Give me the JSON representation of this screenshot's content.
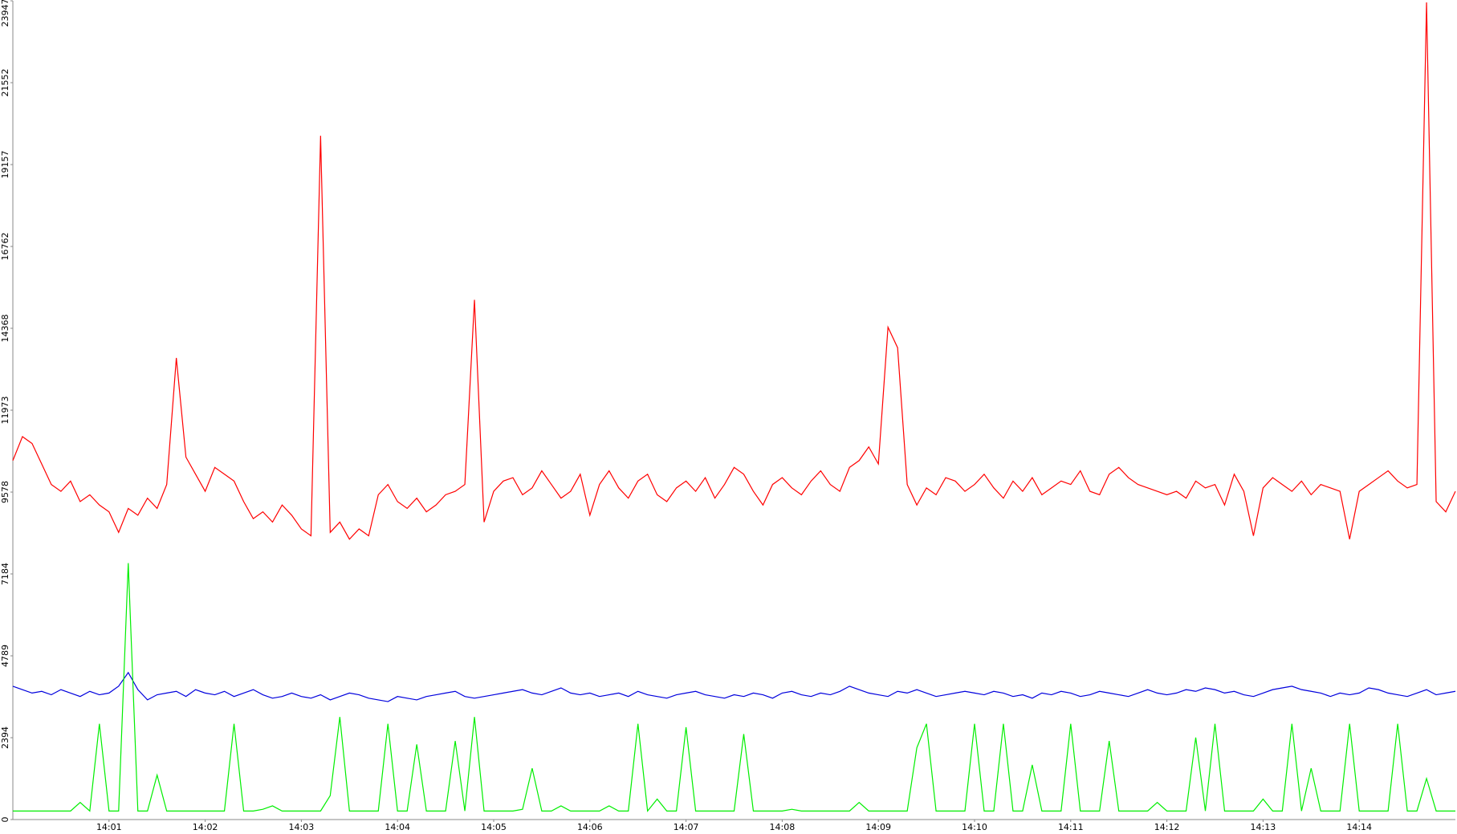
{
  "chart_data": {
    "type": "line",
    "x": [
      0,
      0.1,
      0.2,
      0.3,
      0.4,
      0.5,
      0.6,
      0.7,
      0.8,
      0.9,
      1,
      1.1,
      1.2,
      1.3,
      1.4,
      1.5,
      1.6,
      1.7,
      1.8,
      1.9,
      2,
      2.1,
      2.2,
      2.3,
      2.4,
      2.5,
      2.6,
      2.7,
      2.8,
      2.9,
      3,
      3.1,
      3.2,
      3.3,
      3.4,
      3.5,
      3.6,
      3.7,
      3.8,
      3.9,
      4,
      4.1,
      4.2,
      4.3,
      4.4,
      4.5,
      4.6,
      4.7,
      4.8,
      4.9,
      5,
      5.1,
      5.2,
      5.3,
      5.4,
      5.5,
      5.6,
      5.7,
      5.8,
      5.9,
      6,
      6.1,
      6.2,
      6.3,
      6.4,
      6.5,
      6.6,
      6.7,
      6.8,
      6.9,
      7,
      7.1,
      7.2,
      7.3,
      7.4,
      7.5,
      7.6,
      7.7,
      7.8,
      7.9,
      8,
      8.1,
      8.2,
      8.3,
      8.4,
      8.5,
      8.6,
      8.7,
      8.8,
      8.9,
      9,
      9.1,
      9.2,
      9.3,
      9.4,
      9.5,
      9.6,
      9.7,
      9.8,
      9.9,
      10,
      10.1,
      10.2,
      10.3,
      10.4,
      10.5,
      10.6,
      10.7,
      10.8,
      10.9,
      11,
      11.1,
      11.2,
      11.3,
      11.4,
      11.5,
      11.6,
      11.7,
      11.8,
      11.9,
      12,
      12.1,
      12.2,
      12.3,
      12.4,
      12.5,
      12.6,
      12.7,
      12.8,
      12.9,
      13,
      13.1,
      13.2,
      13.3,
      13.4,
      13.5,
      13.6,
      13.7,
      13.8,
      13.9,
      14,
      14.1,
      14.2,
      14.3,
      14.4,
      14.5,
      14.6,
      14.7,
      14.8,
      14.9,
      15
    ],
    "series": [
      {
        "color": "#ff0000",
        "values": [
          10500,
          11200,
          11000,
          10400,
          9800,
          9600,
          9900,
          9300,
          9500,
          9200,
          9000,
          8400,
          9100,
          8900,
          9400,
          9100,
          9800,
          13500,
          10600,
          10100,
          9600,
          10300,
          10100,
          9900,
          9300,
          8800,
          9000,
          8700,
          9200,
          8900,
          8500,
          8300,
          20000,
          8400,
          8700,
          8200,
          8500,
          8300,
          9500,
          9800,
          9300,
          9100,
          9400,
          9000,
          9200,
          9500,
          9600,
          9800,
          15200,
          8700,
          9600,
          9900,
          10000,
          9500,
          9700,
          10200,
          9800,
          9400,
          9600,
          10100,
          8900,
          9800,
          10200,
          9700,
          9400,
          9900,
          10100,
          9500,
          9300,
          9700,
          9900,
          9600,
          10000,
          9400,
          9800,
          10300,
          10100,
          9600,
          9200,
          9800,
          10000,
          9700,
          9500,
          9900,
          10200,
          9800,
          9600,
          10300,
          10500,
          10900,
          10400,
          14400,
          13800,
          9800,
          9200,
          9700,
          9500,
          10000,
          9900,
          9600,
          9800,
          10100,
          9700,
          9400,
          9900,
          9600,
          10000,
          9500,
          9700,
          9900,
          9800,
          10200,
          9600,
          9500,
          10100,
          10300,
          10000,
          9800,
          9700,
          9600,
          9500,
          9600,
          9400,
          9900,
          9700,
          9800,
          9200,
          10100,
          9600,
          8300,
          9700,
          10000,
          9800,
          9600,
          9900,
          9500,
          9800,
          9700,
          9600,
          8200,
          9600,
          9800,
          10000,
          10200,
          9900,
          9700,
          9800,
          23900,
          9300,
          9000,
          9600
        ]
      },
      {
        "color": "#0000dd",
        "values": [
          3900,
          3800,
          3700,
          3750,
          3650,
          3800,
          3700,
          3600,
          3750,
          3650,
          3700,
          3900,
          4300,
          3800,
          3500,
          3650,
          3700,
          3750,
          3600,
          3800,
          3700,
          3650,
          3750,
          3600,
          3700,
          3800,
          3650,
          3550,
          3600,
          3700,
          3600,
          3550,
          3650,
          3500,
          3600,
          3700,
          3650,
          3550,
          3500,
          3450,
          3600,
          3550,
          3500,
          3600,
          3650,
          3700,
          3750,
          3600,
          3550,
          3600,
          3650,
          3700,
          3750,
          3800,
          3700,
          3650,
          3750,
          3850,
          3700,
          3650,
          3700,
          3600,
          3650,
          3700,
          3600,
          3750,
          3650,
          3600,
          3550,
          3650,
          3700,
          3750,
          3650,
          3600,
          3550,
          3650,
          3600,
          3700,
          3650,
          3550,
          3700,
          3750,
          3650,
          3600,
          3700,
          3650,
          3750,
          3900,
          3800,
          3700,
          3650,
          3600,
          3750,
          3700,
          3800,
          3700,
          3600,
          3650,
          3700,
          3750,
          3700,
          3650,
          3750,
          3700,
          3600,
          3650,
          3550,
          3700,
          3650,
          3750,
          3700,
          3600,
          3650,
          3750,
          3700,
          3650,
          3600,
          3700,
          3800,
          3700,
          3650,
          3700,
          3800,
          3750,
          3850,
          3800,
          3700,
          3750,
          3650,
          3600,
          3700,
          3800,
          3850,
          3900,
          3800,
          3750,
          3700,
          3600,
          3700,
          3650,
          3700,
          3850,
          3800,
          3700,
          3650,
          3600,
          3700,
          3800,
          3650,
          3700,
          3750
        ]
      },
      {
        "color": "#00ee00",
        "values": [
          250,
          250,
          250,
          250,
          250,
          250,
          250,
          500,
          250,
          2800,
          250,
          250,
          7500,
          250,
          250,
          1300,
          250,
          250,
          250,
          250,
          250,
          250,
          250,
          2800,
          250,
          250,
          300,
          400,
          250,
          250,
          250,
          250,
          250,
          700,
          3000,
          250,
          250,
          250,
          250,
          2800,
          250,
          250,
          2200,
          250,
          250,
          250,
          2300,
          250,
          3000,
          250,
          250,
          250,
          250,
          300,
          1500,
          250,
          250,
          400,
          250,
          250,
          250,
          250,
          400,
          250,
          250,
          2800,
          250,
          600,
          250,
          250,
          2700,
          250,
          250,
          250,
          250,
          250,
          2500,
          250,
          250,
          250,
          250,
          300,
          250,
          250,
          250,
          250,
          250,
          250,
          500,
          250,
          250,
          250,
          250,
          250,
          2100,
          2800,
          250,
          250,
          250,
          250,
          2800,
          250,
          250,
          2800,
          250,
          250,
          1600,
          250,
          250,
          250,
          2800,
          250,
          250,
          250,
          2300,
          250,
          250,
          250,
          250,
          500,
          250,
          250,
          250,
          2400,
          250,
          2800,
          250,
          250,
          250,
          250,
          600,
          250,
          250,
          2800,
          250,
          1500,
          250,
          250,
          250,
          2800,
          250,
          250,
          250,
          250,
          2800,
          250,
          250,
          1200,
          250,
          250,
          250
        ]
      }
    ],
    "xlim": [
      0,
      15
    ],
    "xticks": [
      {
        "value": 1,
        "label": "14:01"
      },
      {
        "value": 2,
        "label": "14:02"
      },
      {
        "value": 3,
        "label": "14:03"
      },
      {
        "value": 4,
        "label": "14:04"
      },
      {
        "value": 5,
        "label": "14:05"
      },
      {
        "value": 6,
        "label": "14:06"
      },
      {
        "value": 7,
        "label": "14:07"
      },
      {
        "value": 8,
        "label": "14:08"
      },
      {
        "value": 9,
        "label": "14:09"
      },
      {
        "value": 10,
        "label": "14:10"
      },
      {
        "value": 11,
        "label": "14:11"
      },
      {
        "value": 12,
        "label": "14:12"
      },
      {
        "value": 13,
        "label": "14:13"
      },
      {
        "value": 14,
        "label": "14:14"
      }
    ],
    "ylim": [
      0,
      23947
    ],
    "yticks": [
      0,
      2394,
      4789,
      7184,
      9578,
      11973,
      14368,
      16762,
      19157,
      21552,
      23947
    ]
  }
}
